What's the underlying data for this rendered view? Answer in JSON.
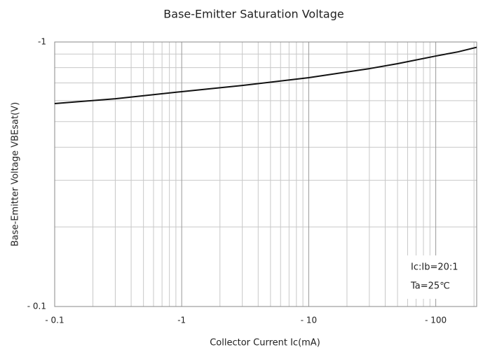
{
  "chart_data": {
    "type": "line",
    "title": "Base-Emitter Saturation Voltage",
    "x_label": "Collector Current   Ic(mA)",
    "y_label": "Base-Emitter Voltage   VBEsat(V)",
    "x_log": true,
    "y_log": true,
    "grid": true,
    "xlim": [
      -0.1,
      -210
    ],
    "ylim": [
      -0.1,
      -1
    ],
    "xticks": [
      {
        "value": -0.1,
        "label": "- 0.1"
      },
      {
        "value": -1,
        "label": "-1"
      },
      {
        "value": -10,
        "label": "- 10"
      },
      {
        "value": -100,
        "label": "- 100"
      }
    ],
    "yticks": [
      {
        "value": -0.1,
        "label": "- 0.1"
      },
      {
        "value": -1,
        "label": "-1"
      }
    ],
    "annotations": [
      "Ic:Ib=20:1",
      "Ta=25℃"
    ],
    "series": [
      {
        "name": "VBEsat",
        "color": "#111111",
        "x": [
          -0.1,
          -0.3,
          -1,
          -3,
          -10,
          -30,
          -50,
          -100,
          -150,
          -210
        ],
        "values": [
          -0.585,
          -0.61,
          -0.649,
          -0.685,
          -0.733,
          -0.793,
          -0.828,
          -0.885,
          -0.918,
          -0.955
        ]
      }
    ]
  }
}
